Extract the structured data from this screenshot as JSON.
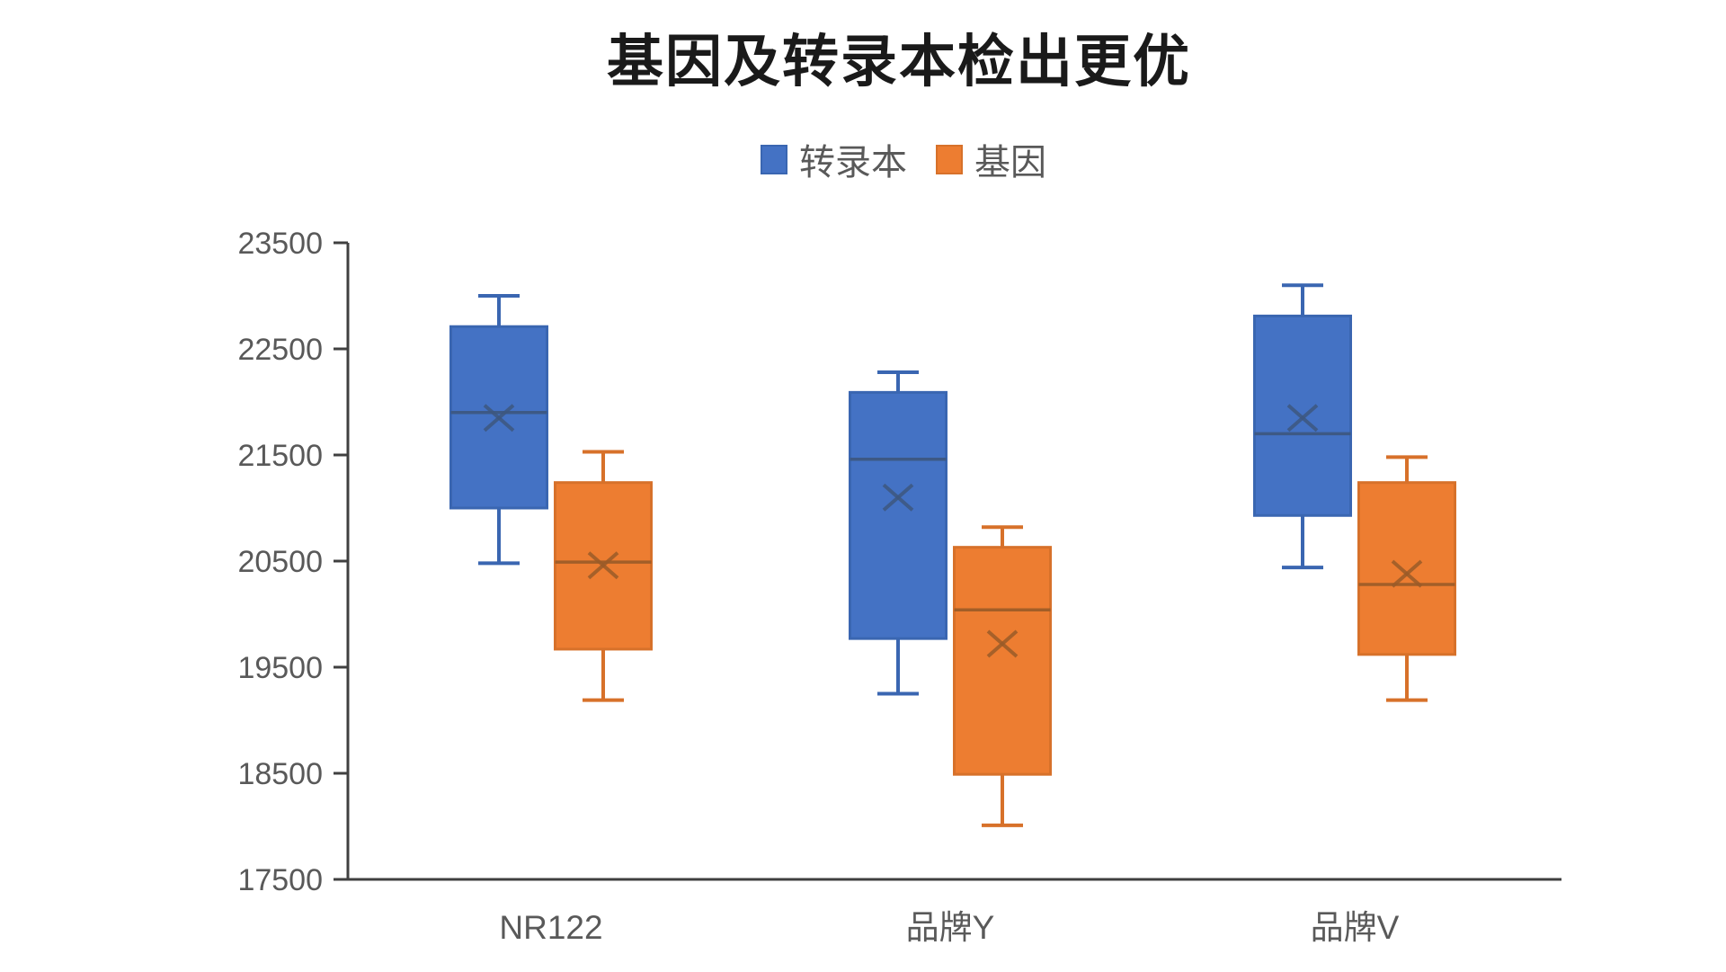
{
  "chart_data": {
    "type": "boxplot",
    "title": "基因及转录本检出更优",
    "categories": [
      "NR122",
      "品牌Y",
      "品牌V"
    ],
    "legend_position": "top",
    "grid": false,
    "y_axis": {
      "min": 17500,
      "max": 23500,
      "step": 1000,
      "tick_labels": [
        "23500",
        "22500",
        "21500",
        "20500",
        "19500",
        "18500",
        "17500"
      ]
    },
    "axis_color": "#404040",
    "text_color": "#595959",
    "title_color": "#1a1a1a",
    "series": [
      {
        "name": "转录本",
        "fill": "#4472C4",
        "stroke": "#3a66b1",
        "detail": "#3d577f",
        "boxes": [
          {
            "category": "NR122",
            "min": 20480,
            "q1": 21000,
            "median": 21900,
            "mean": 21850,
            "q3": 22710,
            "max": 23000
          },
          {
            "category": "品牌Y",
            "min": 19250,
            "q1": 19770,
            "median": 21460,
            "mean": 21100,
            "q3": 22090,
            "max": 22280
          },
          {
            "category": "品牌V",
            "min": 20440,
            "q1": 20930,
            "median": 21700,
            "mean": 21850,
            "q3": 22810,
            "max": 23100
          }
        ]
      },
      {
        "name": "基因",
        "fill": "#ED7D31",
        "stroke": "#d7712a",
        "detail": "#9a5b28",
        "boxes": [
          {
            "category": "NR122",
            "min": 19190,
            "q1": 19670,
            "median": 20490,
            "mean": 20460,
            "q3": 21240,
            "max": 21530
          },
          {
            "category": "品牌Y",
            "min": 18010,
            "q1": 18490,
            "median": 20040,
            "mean": 19720,
            "q3": 20630,
            "max": 20820
          },
          {
            "category": "品牌V",
            "min": 19190,
            "q1": 19620,
            "median": 20280,
            "mean": 20380,
            "q3": 21240,
            "max": 21480
          }
        ]
      }
    ]
  }
}
